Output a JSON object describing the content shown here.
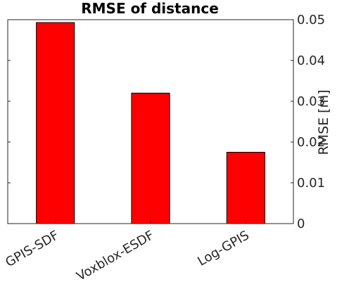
{
  "chart_data": {
    "type": "bar",
    "title": "RMSE of distance",
    "categories": [
      "GPIS-SDF",
      "Voxblox-ESDF",
      "Log-GPIS"
    ],
    "values": [
      0.0493,
      0.032,
      0.0175
    ],
    "xlabel": "",
    "ylabel": "RMSE [m]",
    "ylim": [
      0,
      0.05
    ],
    "yticks": [
      0,
      0.01,
      0.02,
      0.03,
      0.04,
      0.05
    ],
    "ytick_labels": [
      "0",
      "0.01",
      "0.02",
      "0.03",
      "0.04",
      "0.05"
    ],
    "y_axis_side": "right",
    "grid": false,
    "bar_color": "#ff0000"
  }
}
